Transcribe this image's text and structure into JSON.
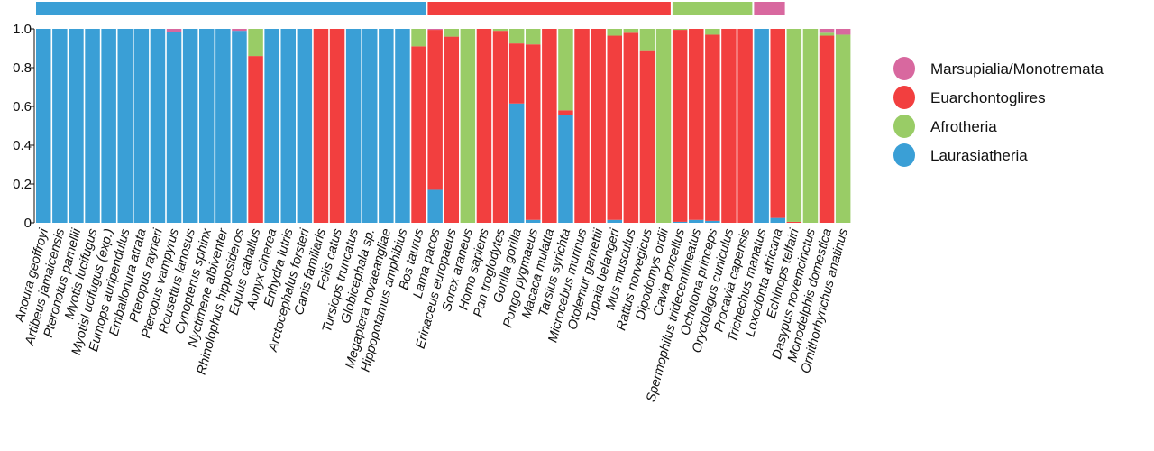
{
  "chart_data": {
    "type": "bar",
    "stacked": true,
    "ylim": [
      0,
      1
    ],
    "yticks": [
      "0",
      "0.2",
      "0.4",
      "0.6",
      "0.8",
      "1.0"
    ],
    "yticks_values": [
      0,
      0.2,
      0.4,
      0.6,
      0.8,
      1.0
    ],
    "grid": false,
    "legend_position": "right",
    "colors": {
      "Laurasiatheria": "#3a9fd6",
      "Afrotheria": "#99cc66",
      "Euarchontoglires": "#f23f3f",
      "Marsupialia/Monotremata": "#d8689f"
    },
    "legend": [
      "Marsupialia/Monotremata",
      "Euarchontoglires",
      "Afrotheria",
      "Laurasiatheria"
    ],
    "stack_order": [
      "Laurasiatheria",
      "Euarchontoglires",
      "Afrotheria",
      "Marsupialia/Monotremata"
    ],
    "top_groups": [
      {
        "name": "Laurasiatheria",
        "count": 24
      },
      {
        "name": "Euarchontoglires",
        "count": 15
      },
      {
        "name": "Afrotheria",
        "count": 5
      },
      {
        "name": "Marsupialia/Monotremata",
        "count": 2
      }
    ],
    "categories": [
      "Anoura geoffroyi",
      "Artibeus jamaicensis",
      "Pteronotus parnellii",
      "Myotis lucifugus",
      "Myotisl ucifugus (exp.)",
      "Eumops auripendulus",
      "Emballonura atrata",
      "Pteropus rayneri",
      "Pteropus vampyrus",
      "Rousettus lanosus",
      "Cynopterus sphinx",
      "Nyctimene albiventer",
      "Rhinolophus hipposideros",
      "Equus caballus",
      "Aonyx cinerea",
      "Enhydra lutris",
      "Arctocephalus forsteri",
      "Canis familiaris",
      "Felis catus",
      "Tursiops truncatus",
      "Globicephala sp.",
      "Megaptera novaeangliae",
      "Hippopotamus amphibius",
      "Bos taurus",
      "Lama pacos",
      "Erinaceus europaeus",
      "Sorex araneus",
      "Homo sapiens",
      "Pan troglodytes",
      "Gorilla gorilla",
      "Pongo pygmaeus",
      "Macaca mulatta",
      "Tarsius syrichta",
      "Microcebus murinus",
      "Otolemur garnettii",
      "Tupaia belangeri",
      "Mus musculus",
      "Rattus norvegicus",
      "Dipodomys ordii",
      "Cavia porcellus",
      "Spermophilus tridecemlineatus",
      "Ochotona princeps",
      "Oryctolagus cuniculus",
      "Procavia capensis",
      "Trichechus manatus",
      "Loxodonta africana",
      "Echinops telfairi",
      "Dasypus novemcinctus",
      "Monodelphis domestica",
      "Ornithorhynchus anatinus"
    ],
    "series": [
      {
        "name": "Laurasiatheria",
        "values": [
          1,
          1,
          1,
          1,
          1,
          1,
          1,
          1,
          0.985,
          1,
          1,
          1,
          0.99,
          0,
          1,
          1,
          1,
          0,
          0,
          1,
          1,
          1,
          1,
          0,
          0.17,
          0,
          0,
          0,
          0,
          0.615,
          0.015,
          0,
          0.555,
          0,
          0,
          0.015,
          0,
          0,
          0,
          0.005,
          0.015,
          0.01,
          0,
          0,
          1,
          0.025,
          0,
          0,
          0,
          0
        ]
      },
      {
        "name": "Euarchontoglires",
        "values": [
          0,
          0,
          0,
          0,
          0,
          0,
          0,
          0,
          0,
          0,
          0,
          0,
          0,
          0.86,
          0,
          0,
          0,
          1,
          1,
          0,
          0,
          0,
          0,
          0.91,
          0.825,
          0.96,
          0,
          1,
          0.99,
          0.31,
          0.905,
          1,
          0.025,
          1,
          1,
          0.95,
          0.98,
          0.89,
          0,
          0.99,
          0.985,
          0.96,
          1,
          1,
          0,
          0.975,
          0.005,
          0,
          0.965,
          0
        ]
      },
      {
        "name": "Afrotheria",
        "values": [
          0,
          0,
          0,
          0,
          0,
          0,
          0,
          0,
          0,
          0,
          0,
          0,
          0,
          0.14,
          0,
          0,
          0,
          0,
          0,
          0,
          0,
          0,
          0,
          0.09,
          0,
          0.04,
          1,
          0,
          0.01,
          0.075,
          0.08,
          0,
          0.42,
          0,
          0,
          0.035,
          0.02,
          0.11,
          1,
          0.005,
          0,
          0.03,
          0,
          0,
          0,
          0,
          0.995,
          1,
          0.015,
          0.97
        ]
      },
      {
        "name": "Marsupialia/Monotremata",
        "values": [
          0,
          0,
          0,
          0,
          0,
          0,
          0,
          0,
          0.015,
          0,
          0,
          0,
          0.01,
          0,
          0,
          0,
          0,
          0,
          0,
          0,
          0,
          0,
          0,
          0,
          0.005,
          0,
          0,
          0,
          0,
          0,
          0,
          0,
          0,
          0,
          0,
          0,
          0,
          0,
          0,
          0,
          0,
          0,
          0,
          0,
          0,
          0,
          0,
          0,
          0.02,
          0.03
        ]
      }
    ]
  }
}
